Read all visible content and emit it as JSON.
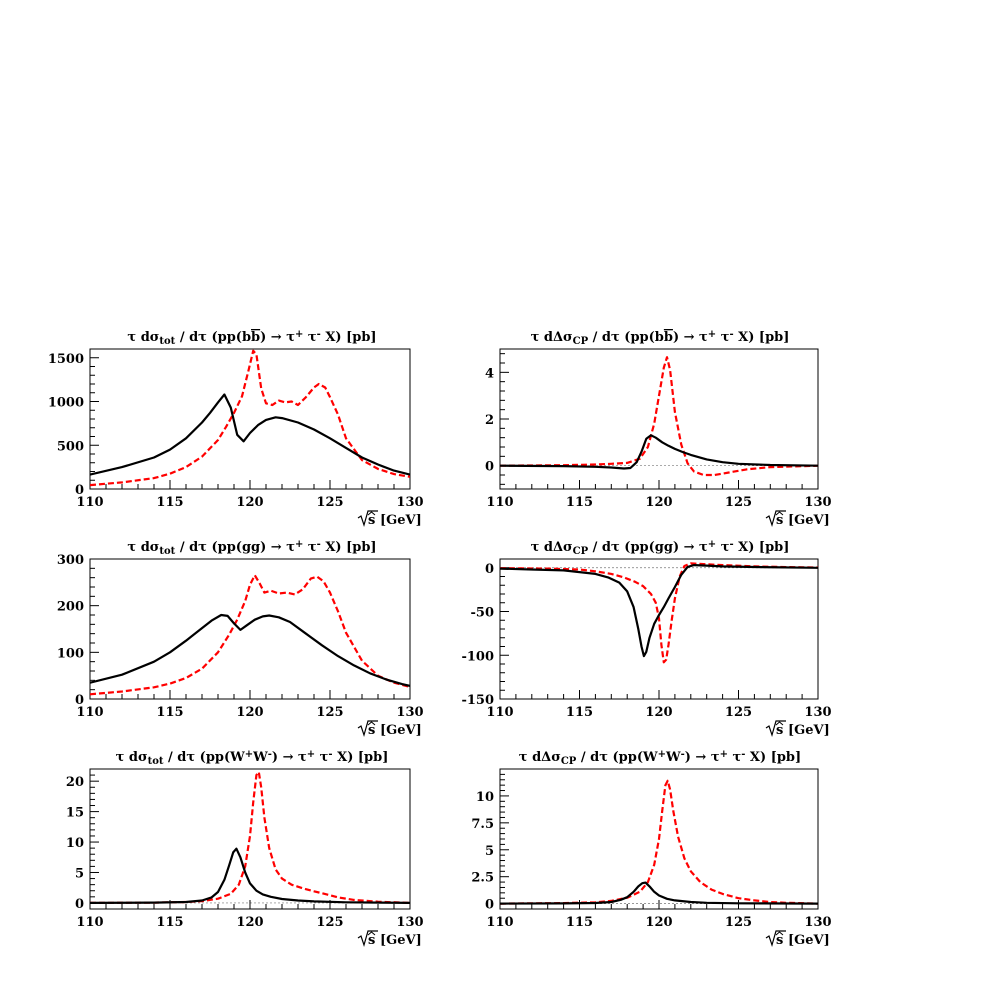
{
  "chart_data": [
    {
      "type": "line",
      "title_parts": [
        "τ dσ",
        "tot",
        " / dτ (pp(b",
        "b",
        ") → τ",
        "+",
        " τ",
        "-",
        " X) [pb]"
      ],
      "xlabel": "[GeV]",
      "xlim": [
        110,
        130
      ],
      "ylim": [
        0,
        1600
      ],
      "xticks": [
        110,
        115,
        120,
        125,
        130
      ],
      "yticks": [
        0,
        500,
        1000,
        1500
      ],
      "ytick_labels": [
        "0",
        "500",
        "1000",
        "1500"
      ],
      "series": [
        {
          "style": "solid",
          "color": "#000000",
          "x": [
            110,
            112,
            114,
            115,
            116,
            117,
            117.5,
            118,
            118.4,
            118.8,
            119.2,
            119.6,
            120,
            120.5,
            121,
            121.6,
            122,
            123,
            124,
            125,
            126,
            127,
            128,
            129,
            130
          ],
          "y": [
            165,
            250,
            360,
            450,
            580,
            760,
            870,
            990,
            1080,
            930,
            620,
            545,
            640,
            730,
            790,
            820,
            810,
            760,
            680,
            580,
            470,
            360,
            280,
            210,
            165
          ]
        },
        {
          "style": "dashed",
          "color": "#ff0000",
          "x": [
            110,
            112,
            114,
            115,
            116,
            117,
            118,
            118.5,
            119,
            119.5,
            119.9,
            120.2,
            120.4,
            120.7,
            121,
            121.4,
            121.8,
            122.2,
            122.6,
            123,
            123.5,
            124,
            124.3,
            124.7,
            125,
            125.5,
            126,
            127,
            128,
            129,
            130
          ],
          "y": [
            45,
            75,
            125,
            175,
            250,
            370,
            560,
            710,
            870,
            1060,
            1350,
            1580,
            1540,
            1150,
            980,
            960,
            1010,
            990,
            1000,
            960,
            1050,
            1160,
            1200,
            1160,
            1050,
            850,
            580,
            330,
            230,
            170,
            140
          ]
        }
      ]
    },
    {
      "type": "line",
      "title_parts": [
        "τ dΔσ",
        "CP",
        " / dτ (pp(b",
        "b",
        ") → τ",
        "+",
        " τ",
        "-",
        " X) [pb]"
      ],
      "xlabel": "[GeV]",
      "xlim": [
        110,
        130
      ],
      "ylim": [
        -1,
        5
      ],
      "xticks": [
        110,
        115,
        120,
        125,
        130
      ],
      "yticks": [
        0,
        2,
        4
      ],
      "ytick_labels": [
        "0",
        "2",
        "4"
      ],
      "zero_line": true,
      "series": [
        {
          "style": "solid",
          "color": "#000000",
          "x": [
            110,
            114,
            116,
            117,
            117.8,
            118.2,
            118.6,
            118.9,
            119.2,
            119.5,
            119.8,
            120.2,
            120.6,
            121,
            121.5,
            122,
            123,
            124,
            125,
            127,
            130
          ],
          "y": [
            0,
            -0.02,
            -0.05,
            -0.08,
            -0.12,
            -0.1,
            0.15,
            0.6,
            1.15,
            1.3,
            1.2,
            1.0,
            0.85,
            0.72,
            0.58,
            0.46,
            0.27,
            0.15,
            0.08,
            0.03,
            0
          ]
        },
        {
          "style": "dashed",
          "color": "#ff0000",
          "x": [
            110,
            114,
            116,
            117,
            118,
            118.8,
            119.3,
            119.7,
            120,
            120.3,
            120.5,
            120.7,
            121,
            121.4,
            121.8,
            122.2,
            122.8,
            123.5,
            124.5,
            125.5,
            127,
            130
          ],
          "y": [
            0,
            0.02,
            0.05,
            0.08,
            0.12,
            0.3,
            0.8,
            1.8,
            3.0,
            4.2,
            4.65,
            4.1,
            2.3,
            0.9,
            0.1,
            -0.25,
            -0.4,
            -0.4,
            -0.28,
            -0.16,
            -0.06,
            0
          ]
        }
      ]
    },
    {
      "type": "line",
      "title_parts": [
        "τ dσ",
        "tot",
        " / dτ (pp(gg) → τ",
        "+",
        " τ",
        "-",
        " X) [pb]"
      ],
      "xlabel": "[GeV]",
      "xlim": [
        110,
        130
      ],
      "ylim": [
        0,
        300
      ],
      "xticks": [
        110,
        115,
        120,
        125,
        130
      ],
      "yticks": [
        0,
        100,
        200,
        300
      ],
      "ytick_labels": [
        "0",
        "100",
        "200",
        "300"
      ],
      "series": [
        {
          "style": "solid",
          "color": "#000000",
          "x": [
            110,
            112,
            114,
            115,
            116,
            117,
            117.6,
            118.2,
            118.6,
            119,
            119.4,
            119.8,
            120.3,
            120.8,
            121.2,
            121.8,
            122.5,
            123.5,
            124.5,
            125.5,
            126.5,
            127.5,
            128.5,
            129.5,
            130
          ],
          "y": [
            35,
            52,
            80,
            100,
            125,
            152,
            168,
            180,
            178,
            162,
            148,
            158,
            170,
            177,
            179,
            175,
            165,
            140,
            115,
            92,
            72,
            55,
            42,
            32,
            28
          ]
        },
        {
          "style": "dashed",
          "color": "#ff0000",
          "x": [
            110,
            112,
            114,
            115,
            116,
            117,
            118,
            118.7,
            119.2,
            119.7,
            120,
            120.3,
            120.6,
            120.9,
            121.3,
            121.8,
            122.3,
            122.8,
            123.3,
            123.8,
            124.2,
            124.6,
            125,
            125.5,
            126,
            127,
            128,
            129,
            130
          ],
          "y": [
            10,
            16,
            25,
            33,
            45,
            65,
            100,
            138,
            170,
            210,
            245,
            265,
            248,
            228,
            232,
            226,
            228,
            224,
            235,
            258,
            262,
            252,
            228,
            188,
            142,
            82,
            50,
            35,
            26
          ]
        }
      ]
    },
    {
      "type": "line",
      "title_parts": [
        "τ dΔσ",
        "CP",
        " / dτ (pp(gg) → τ",
        "+",
        " τ",
        "-",
        " X) [pb]"
      ],
      "xlabel": "[GeV]",
      "xlim": [
        110,
        130
      ],
      "ylim": [
        -150,
        10
      ],
      "xticks": [
        110,
        115,
        120,
        125,
        130
      ],
      "yticks": [
        -150,
        -100,
        -50,
        0
      ],
      "ytick_labels": [
        "-150",
        "-100",
        "-50",
        "0"
      ],
      "zero_line": true,
      "series": [
        {
          "style": "solid",
          "color": "#000000",
          "x": [
            110,
            112,
            114,
            115,
            116,
            116.8,
            117.5,
            118,
            118.4,
            118.7,
            118.9,
            119.05,
            119.2,
            119.4,
            119.7,
            120,
            120.3,
            120.6,
            121,
            121.4,
            121.8,
            122.2,
            123,
            124,
            126,
            130
          ],
          "y": [
            -1,
            -2,
            -3,
            -5,
            -7,
            -11,
            -17,
            -27,
            -45,
            -70,
            -90,
            -101,
            -96,
            -80,
            -64,
            -54,
            -45,
            -35,
            -22,
            -8,
            1,
            3,
            2.5,
            1.5,
            0.8,
            0
          ]
        },
        {
          "style": "dashed",
          "color": "#ff0000",
          "x": [
            110,
            113,
            115,
            116,
            117,
            117.8,
            118.5,
            119,
            119.5,
            119.8,
            120,
            120.15,
            120.3,
            120.45,
            120.6,
            120.8,
            121,
            121.3,
            121.6,
            122,
            123,
            124,
            126,
            128,
            130
          ],
          "y": [
            -0.5,
            -1,
            -2,
            -4,
            -7,
            -11,
            -16,
            -21,
            -30,
            -40,
            -58,
            -88,
            -108,
            -105,
            -88,
            -60,
            -35,
            -10,
            2,
            5,
            4,
            3,
            1.5,
            0.7,
            0.3
          ]
        }
      ]
    },
    {
      "type": "line",
      "title_parts": [
        "τ dσ",
        "tot",
        " / dτ (pp(W",
        "+",
        "W",
        "-",
        ") → τ",
        "+",
        " τ",
        "-",
        " X) [pb]"
      ],
      "xlabel": "[GeV]",
      "xlim": [
        110,
        130
      ],
      "ylim": [
        -1,
        22
      ],
      "xticks": [
        110,
        115,
        120,
        125,
        130
      ],
      "yticks": [
        0,
        5,
        10,
        15,
        20
      ],
      "ytick_labels": [
        "0",
        "5",
        "10",
        "15",
        "20"
      ],
      "zero_line": true,
      "series": [
        {
          "style": "solid",
          "color": "#000000",
          "x": [
            110,
            114,
            116,
            117,
            117.6,
            118,
            118.4,
            118.7,
            118.95,
            119.15,
            119.4,
            119.7,
            120,
            120.4,
            120.8,
            121.3,
            122,
            123,
            124,
            126,
            130
          ],
          "y": [
            0,
            0.05,
            0.15,
            0.4,
            0.9,
            1.8,
            3.8,
            6.2,
            8.3,
            8.9,
            7.5,
            5,
            3.2,
            2.0,
            1.4,
            1.0,
            0.65,
            0.4,
            0.25,
            0.1,
            0
          ]
        },
        {
          "style": "dashed",
          "color": "#ff0000",
          "x": [
            110,
            114,
            116,
            117,
            118,
            118.8,
            119.3,
            119.7,
            120,
            120.2,
            120.4,
            120.55,
            120.7,
            120.9,
            121.2,
            121.6,
            122,
            122.6,
            123.3,
            124,
            124.8,
            125.5,
            126.5,
            128,
            130
          ],
          "y": [
            0,
            0.05,
            0.15,
            0.3,
            0.7,
            1.5,
            3,
            6,
            11,
            16.5,
            21,
            21.5,
            19,
            14,
            9,
            5.5,
            4,
            3,
            2.4,
            1.9,
            1.4,
            0.9,
            0.5,
            0.2,
            0
          ]
        }
      ]
    },
    {
      "type": "line",
      "title_parts": [
        "τ dΔσ",
        "CP",
        " / dτ (pp(W",
        "+",
        "W",
        "-",
        ") → τ",
        "+",
        " τ",
        "-",
        " X) [pb]"
      ],
      "xlabel": "[GeV]",
      "xlim": [
        110,
        130
      ],
      "ylim": [
        -0.5,
        12.5
      ],
      "xticks": [
        110,
        115,
        120,
        125,
        130
      ],
      "yticks": [
        0,
        2.5,
        5,
        7.5,
        10
      ],
      "ytick_labels": [
        "0",
        "2.5",
        "5",
        "7.5",
        "10"
      ],
      "zero_line": true,
      "series": [
        {
          "style": "solid",
          "color": "#000000",
          "x": [
            110,
            114,
            116,
            117,
            117.6,
            118,
            118.4,
            118.7,
            118.95,
            119.15,
            119.4,
            119.7,
            120,
            120.5,
            121,
            122,
            123,
            125,
            130
          ],
          "y": [
            0,
            0.02,
            0.06,
            0.15,
            0.35,
            0.6,
            1.1,
            1.6,
            1.9,
            1.95,
            1.6,
            1.1,
            0.75,
            0.45,
            0.3,
            0.15,
            0.08,
            0.03,
            0
          ]
        },
        {
          "style": "dashed",
          "color": "#ff0000",
          "x": [
            110,
            114,
            116,
            117,
            118,
            118.8,
            119.3,
            119.7,
            120,
            120.2,
            120.4,
            120.55,
            120.7,
            120.9,
            121.2,
            121.6,
            122,
            122.6,
            123.3,
            124,
            125,
            126,
            127,
            128,
            130
          ],
          "y": [
            0,
            0.05,
            0.12,
            0.25,
            0.55,
            1.1,
            2.0,
            3.6,
            6.0,
            8.6,
            11.0,
            11.4,
            10.6,
            8.6,
            6.2,
            4.2,
            3.0,
            2.0,
            1.3,
            0.9,
            0.5,
            0.3,
            0.15,
            0.08,
            0
          ]
        }
      ]
    }
  ]
}
